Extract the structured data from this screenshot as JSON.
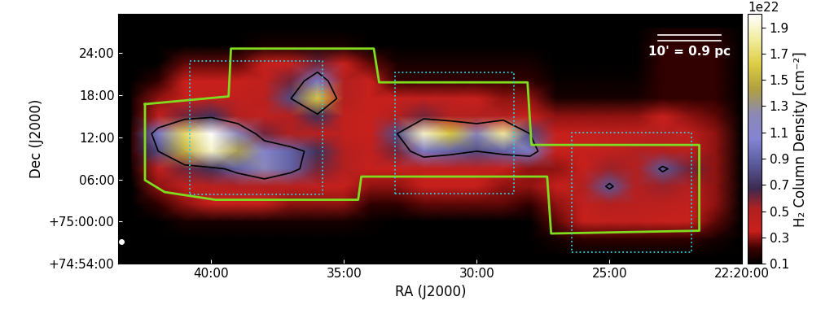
{
  "chart_data": {
    "type": "heatmap",
    "x_label": "RA (J2000)",
    "y_label": "Dec (J2000)",
    "xlim": [
      43.5,
      20.0
    ],
    "ylim": [
      -6,
      29.5
    ],
    "xticks": [
      {
        "value": 40,
        "label": "40:00"
      },
      {
        "value": 35,
        "label": "35:00"
      },
      {
        "value": 30,
        "label": "30:00"
      },
      {
        "value": 25,
        "label": "25:00"
      },
      {
        "value": 20,
        "label": "22:20:00"
      }
    ],
    "yticks": [
      {
        "value": 24,
        "label": "24:00"
      },
      {
        "value": 18,
        "label": "18:00"
      },
      {
        "value": 12,
        "label": "12:00"
      },
      {
        "value": 6,
        "label": "06:00"
      },
      {
        "value": 0,
        "label": "+75:00:00"
      },
      {
        "value": -6,
        "label": "+74:54:00"
      }
    ],
    "x": [
      43,
      42,
      41,
      40,
      39,
      38,
      37,
      36,
      35,
      34,
      33,
      32,
      31,
      30,
      29,
      28,
      27,
      26,
      25,
      24,
      23,
      22,
      21,
      20
    ],
    "y": [
      27.5,
      25,
      22.5,
      20,
      17.5,
      15,
      12.5,
      10,
      7.5,
      5,
      2.5,
      0,
      -2.5,
      -5
    ],
    "cells": [
      [
        0.1,
        0.1,
        0.1,
        0.1,
        0.1,
        0.1,
        0.1,
        0.1,
        0.1,
        0.1,
        0.1,
        0.1,
        0.1,
        0.1,
        0.1,
        0.1,
        0.1,
        0.1,
        0.1,
        0.1,
        0.15,
        0.15,
        0.15,
        0.1
      ],
      [
        0.1,
        0.1,
        0.1,
        0.1,
        0.1,
        0.15,
        0.15,
        0.15,
        0.15,
        0.1,
        0.1,
        0.1,
        0.1,
        0.1,
        0.1,
        0.1,
        0.1,
        0.1,
        0.1,
        0.1,
        0.2,
        0.2,
        0.2,
        0.1
      ],
      [
        0.1,
        0.1,
        0.25,
        0.25,
        0.25,
        0.35,
        0.35,
        0.6,
        0.35,
        0.25,
        0.15,
        0.15,
        0.15,
        0.15,
        0.15,
        0.15,
        0.1,
        0.1,
        0.1,
        0.1,
        0.2,
        0.2,
        0.2,
        0.1
      ],
      [
        0.1,
        0.2,
        0.35,
        0.35,
        0.35,
        0.4,
        0.6,
        1.0,
        0.5,
        0.35,
        0.2,
        0.2,
        0.2,
        0.2,
        0.2,
        0.2,
        0.12,
        0.12,
        0.12,
        0.12,
        0.2,
        0.2,
        0.2,
        0.1
      ],
      [
        0.15,
        0.3,
        0.35,
        0.4,
        0.4,
        0.45,
        0.8,
        1.6,
        0.5,
        0.35,
        0.35,
        0.4,
        0.4,
        0.35,
        0.3,
        0.3,
        0.15,
        0.15,
        0.15,
        0.15,
        0.2,
        0.2,
        0.2,
        0.1
      ],
      [
        0.15,
        0.4,
        0.6,
        0.7,
        0.5,
        0.4,
        0.5,
        0.7,
        0.4,
        0.35,
        0.5,
        0.6,
        0.5,
        0.5,
        0.5,
        0.35,
        0.3,
        0.3,
        0.3,
        0.3,
        0.35,
        0.3,
        0.25,
        0.1
      ],
      [
        0.2,
        1.0,
        1.7,
        2.0,
        1.2,
        0.6,
        0.5,
        0.45,
        0.4,
        0.35,
        0.8,
        1.9,
        1.6,
        1.2,
        1.8,
        0.8,
        0.35,
        0.35,
        0.4,
        0.4,
        0.45,
        0.4,
        0.3,
        0.1
      ],
      [
        0.2,
        0.8,
        1.5,
        1.9,
        1.4,
        1.1,
        0.9,
        0.7,
        0.5,
        0.4,
        0.6,
        1.0,
        0.9,
        0.8,
        0.9,
        1.0,
        0.35,
        0.35,
        0.4,
        0.5,
        0.5,
        0.45,
        0.3,
        0.1
      ],
      [
        0.15,
        0.4,
        0.6,
        0.7,
        0.9,
        1.2,
        0.9,
        0.6,
        0.5,
        0.35,
        0.35,
        0.4,
        0.4,
        0.4,
        0.35,
        0.3,
        0.3,
        0.35,
        0.55,
        0.5,
        0.85,
        0.6,
        0.3,
        0.1
      ],
      [
        0.1,
        0.3,
        0.4,
        0.45,
        0.5,
        0.5,
        0.45,
        0.4,
        0.35,
        0.3,
        0.3,
        0.35,
        0.35,
        0.35,
        0.3,
        0.3,
        0.35,
        0.5,
        0.85,
        0.5,
        0.55,
        0.5,
        0.3,
        0.1
      ],
      [
        0.1,
        0.2,
        0.3,
        0.35,
        0.35,
        0.35,
        0.3,
        0.3,
        0.3,
        0.2,
        0.2,
        0.25,
        0.25,
        0.25,
        0.25,
        0.2,
        0.3,
        0.4,
        0.5,
        0.45,
        0.45,
        0.4,
        0.3,
        0.1
      ],
      [
        0.1,
        0.1,
        0.15,
        0.15,
        0.15,
        0.15,
        0.15,
        0.15,
        0.15,
        0.12,
        0.1,
        0.1,
        0.1,
        0.1,
        0.1,
        0.1,
        0.25,
        0.35,
        0.4,
        0.4,
        0.35,
        0.35,
        0.25,
        0.1
      ],
      [
        0.1,
        0.1,
        0.1,
        0.1,
        0.1,
        0.1,
        0.1,
        0.1,
        0.1,
        0.1,
        0.1,
        0.1,
        0.1,
        0.1,
        0.1,
        0.1,
        0.15,
        0.2,
        0.2,
        0.2,
        0.2,
        0.2,
        0.15,
        0.1
      ],
      [
        0.1,
        0.1,
        0.1,
        0.1,
        0.1,
        0.1,
        0.1,
        0.1,
        0.1,
        0.1,
        0.1,
        0.1,
        0.1,
        0.1,
        0.1,
        0.1,
        0.1,
        0.1,
        0.1,
        0.1,
        0.1,
        0.1,
        0.1,
        0.1
      ]
    ],
    "contour_levels": [
      0.8
    ],
    "colorbar": {
      "label": "H₂ Column Density [cm⁻²]",
      "scale_text": "1e22",
      "range": [
        0.1,
        2.0
      ],
      "ticks": [
        0.1,
        0.3,
        0.5,
        0.7,
        0.9,
        1.1,
        1.3,
        1.5,
        1.7,
        1.9
      ]
    },
    "outline": {
      "ra": [
        42.5,
        39.35,
        39.26,
        33.88,
        33.68,
        28.09,
        27.94,
        21.62,
        21.62,
        27.2,
        27.35,
        34.35,
        34.47,
        39.85,
        41.76,
        42.5,
        42.5
      ],
      "dec": [
        16.7,
        17.8,
        24.6,
        24.6,
        19.8,
        19.8,
        10.9,
        10.9,
        -1.3,
        -1.7,
        6.4,
        6.4,
        3.1,
        3.1,
        4.2,
        5.9,
        16.7
      ]
    },
    "boxes": [
      {
        "ra": [
          40.82,
          35.82
        ],
        "dec": [
          3.9,
          22.8
        ]
      },
      {
        "ra": [
          33.09,
          28.59
        ],
        "dec": [
          4.0,
          21.2
        ]
      },
      {
        "ra": [
          26.41,
          21.91
        ],
        "dec": [
          -4.4,
          12.6
        ]
      }
    ],
    "scale_bar": "10' = 0.9 pc"
  }
}
